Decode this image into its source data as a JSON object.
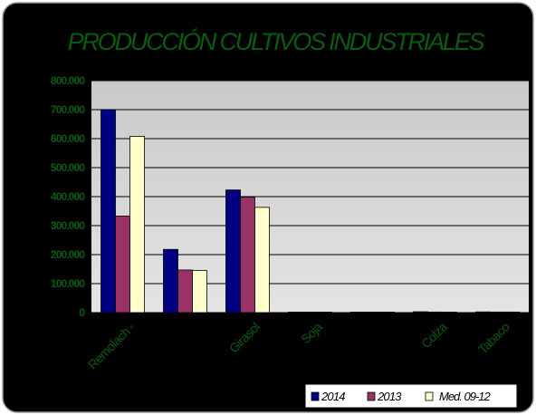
{
  "colors": {
    "background": "#000000",
    "title": "#0b5a12",
    "axis_text": "#0b5a12",
    "plot_fill_top": "#c9c9c9",
    "plot_fill_bottom": "#e4e4e4",
    "gridline": "#000000",
    "legend_bg": "#ffffff",
    "border": "#9a9a9a"
  },
  "chart_data": {
    "type": "bar",
    "title": "PRODUCCIÓN CULTIVOS INDUSTRIALES",
    "xlabel": "",
    "ylabel": "",
    "categories": [
      "Remolach -",
      "",
      "Girasol",
      "Soja",
      "",
      "Colza",
      "Tabaco"
    ],
    "series": [
      {
        "name": "2014",
        "color": "#000080",
        "values": [
          700000,
          218000,
          423000,
          0,
          1500,
          3000,
          2500
        ]
      },
      {
        "name": "2013",
        "color": "#993366",
        "values": [
          333000,
          147000,
          398000,
          0,
          1000,
          2000,
          2000
        ]
      },
      {
        "name": "Med. 09-12",
        "color": "#ffffcc",
        "values": [
          608000,
          145000,
          363000,
          0,
          1000,
          1500,
          2000
        ]
      }
    ],
    "y_ticks": [
      "0",
      "100.000",
      "200.000",
      "300.000",
      "400.000",
      "500.000",
      "600.000",
      "700.000",
      "800.000"
    ],
    "ylim": [
      0,
      800000
    ],
    "grid": true,
    "legend_position": "bottom-right"
  }
}
